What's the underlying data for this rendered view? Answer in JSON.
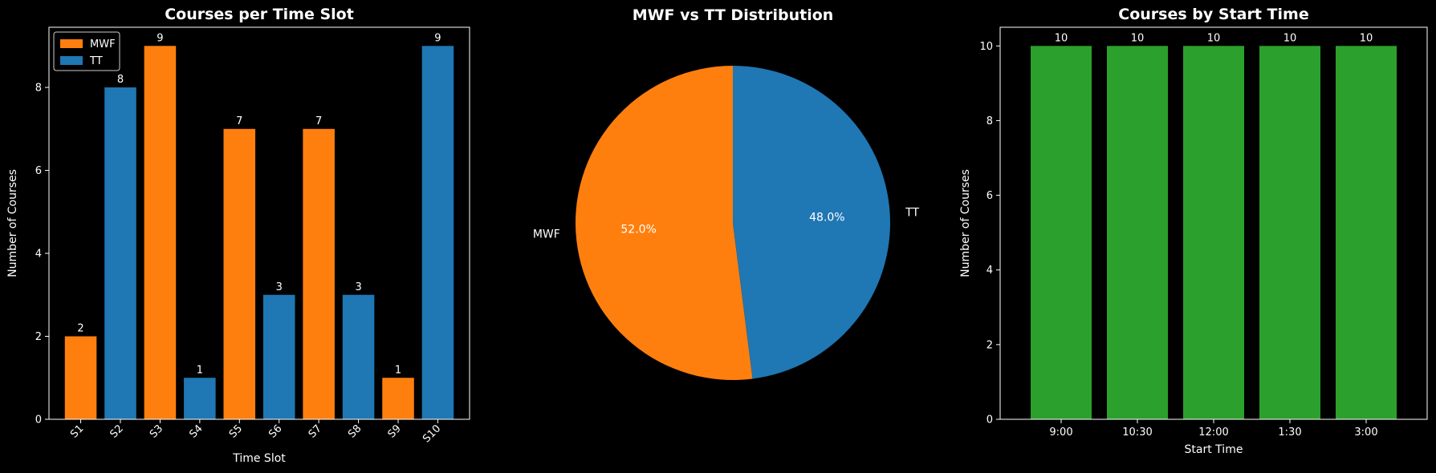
{
  "colors": {
    "background": "#000000",
    "foreground": "#ffffff",
    "mwf": "#ff7f0e",
    "tt": "#1f77b4",
    "start_time": "#2ca02c"
  },
  "chart_data": [
    {
      "type": "bar",
      "title": "Courses per Time Slot",
      "xlabel": "Time Slot",
      "ylabel": "Number of Courses",
      "categories": [
        "S1",
        "S2",
        "S3",
        "S4",
        "S5",
        "S6",
        "S7",
        "S8",
        "S9",
        "S10"
      ],
      "values": [
        2,
        8,
        9,
        1,
        7,
        3,
        7,
        3,
        1,
        9
      ],
      "bar_groups": [
        "MWF",
        "TT",
        "MWF",
        "TT",
        "MWF",
        "TT",
        "MWF",
        "TT",
        "MWF",
        "TT"
      ],
      "series": [
        {
          "name": "MWF",
          "color": "#ff7f0e"
        },
        {
          "name": "TT",
          "color": "#1f77b4"
        }
      ],
      "ylim": [
        0,
        9.45
      ],
      "yticks": [
        0,
        2,
        4,
        6,
        8
      ],
      "xtick_rotation": 45,
      "legend": "top-left",
      "grid": false,
      "data_labels": true
    },
    {
      "type": "pie",
      "title": "MWF vs TT Distribution",
      "labels": [
        "MWF",
        "TT"
      ],
      "values": [
        52.0,
        48.0
      ],
      "percent_labels": [
        "52.0%",
        "48.0%"
      ],
      "colors": [
        "#ff7f0e",
        "#1f77b4"
      ],
      "startangle": 90,
      "direction": "counterclockwise"
    },
    {
      "type": "bar",
      "title": "Courses by Start Time",
      "xlabel": "Start Time",
      "ylabel": "Number of Courses",
      "categories": [
        "9:00",
        "10:30",
        "12:00",
        "1:30",
        "3:00"
      ],
      "values": [
        10,
        10,
        10,
        10,
        10
      ],
      "color": "#2ca02c",
      "ylim": [
        0,
        10.5
      ],
      "yticks": [
        0,
        2,
        4,
        6,
        8,
        10
      ],
      "grid": false,
      "data_labels": true
    }
  ]
}
